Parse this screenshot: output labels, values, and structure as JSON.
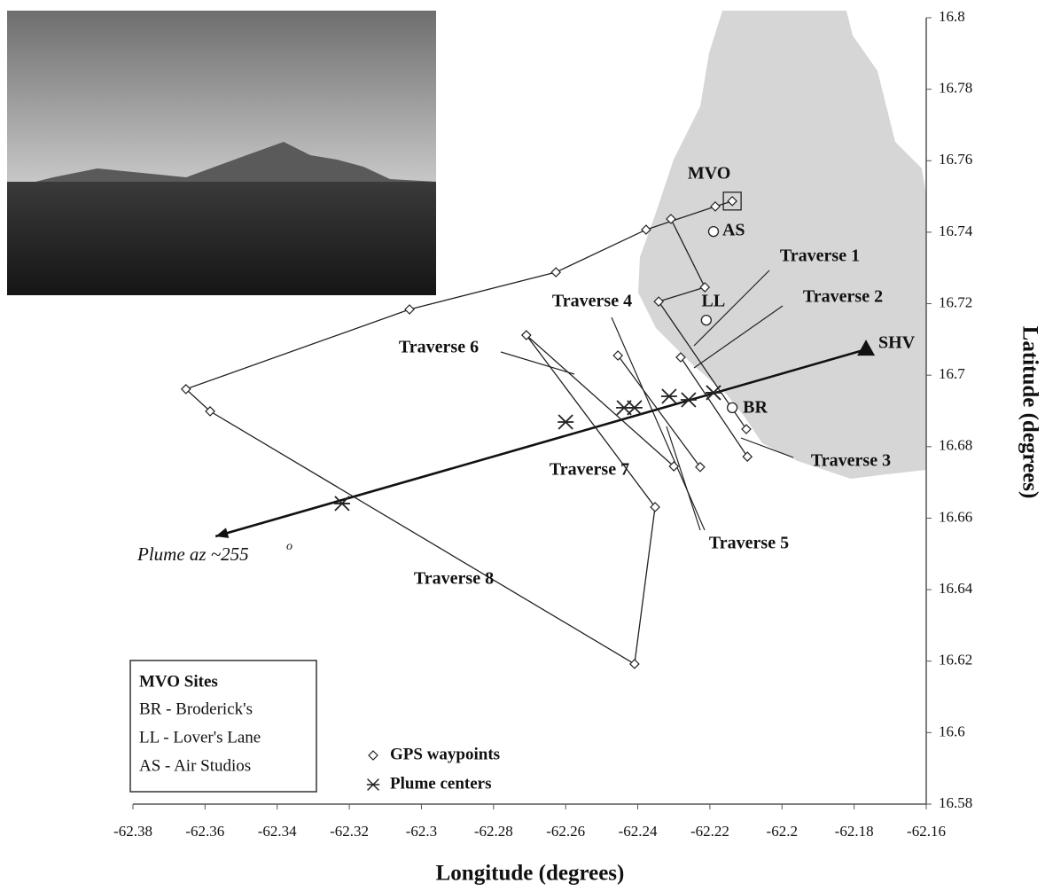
{
  "chart_data": {
    "type": "scatter",
    "xlabel": "Longitude (degrees)",
    "ylabel": "Latitude (degrees)",
    "xlim": [
      -62.38,
      -62.16
    ],
    "ylim": [
      16.58,
      16.8
    ],
    "xticks": [
      -62.38,
      -62.36,
      -62.34,
      -62.32,
      -62.3,
      -62.28,
      -62.26,
      -62.24,
      -62.22,
      -62.2,
      -62.18,
      -62.16
    ],
    "yticks": [
      16.58,
      16.6,
      16.62,
      16.64,
      16.66,
      16.68,
      16.7,
      16.72,
      16.74,
      16.76,
      16.78,
      16.8
    ],
    "series": [
      {
        "name": "GPS waypoints",
        "marker": "diamond",
        "color": "#222",
        "x": [
          -62.2138,
          -62.2185,
          -62.2377,
          -62.2627,
          -62.3033,
          -62.3653,
          -62.3586,
          -62.2409,
          -62.2352,
          -62.2709,
          -62.23,
          null,
          -62.2455,
          -62.2227,
          null,
          -62.2308,
          -62.2214,
          -62.2342,
          -62.2099,
          null,
          -62.2281,
          -62.2096
        ],
        "y": [
          16.7487,
          16.7472,
          16.7407,
          16.7288,
          16.7184,
          16.6961,
          16.6899,
          16.6192,
          16.6631,
          16.7112,
          16.6745,
          null,
          16.7055,
          16.6743,
          null,
          16.7437,
          16.7246,
          16.7206,
          16.6849,
          null,
          16.705,
          16.6772
        ]
      },
      {
        "name": "Plume centers",
        "marker": "asterisk",
        "color": "#222",
        "x": [
          -62.322,
          -62.26,
          -62.2438,
          -62.2409,
          -62.2313,
          -62.2259,
          -62.219
        ],
        "y": [
          16.6641,
          16.6869,
          16.6909,
          16.6909,
          16.6941,
          16.6931,
          16.6951
        ]
      }
    ],
    "sites": [
      {
        "label": "MVO",
        "marker": "square",
        "x": -62.2138,
        "y": 16.7487
      },
      {
        "label": "AS",
        "marker": "circle",
        "x": -62.219,
        "y": 16.7402
      },
      {
        "label": "LL",
        "marker": "circle",
        "x": -62.221,
        "y": 16.7154
      },
      {
        "label": "BR",
        "marker": "circle",
        "x": -62.2138,
        "y": 16.6909
      }
    ],
    "source": {
      "label": "SHV",
      "x": -62.1767,
      "y": 16.7072
    },
    "plume_arrow": {
      "label": "Plume az ~255",
      "superscript": "o",
      "x": [
        -62.1767,
        -62.3571
      ],
      "y": [
        16.7072,
        16.6549
      ]
    },
    "annotations": [
      "Traverse 1",
      "Traverse 2",
      "Traverse 3",
      "Traverse 4",
      "Traverse 5",
      "Traverse 6",
      "Traverse 7",
      "Traverse 8"
    ],
    "site_legend": {
      "title": "MVO Sites",
      "entries": [
        "BR - Broderick's",
        "LL - Lover's Lane",
        "AS - Air Studios"
      ]
    }
  }
}
